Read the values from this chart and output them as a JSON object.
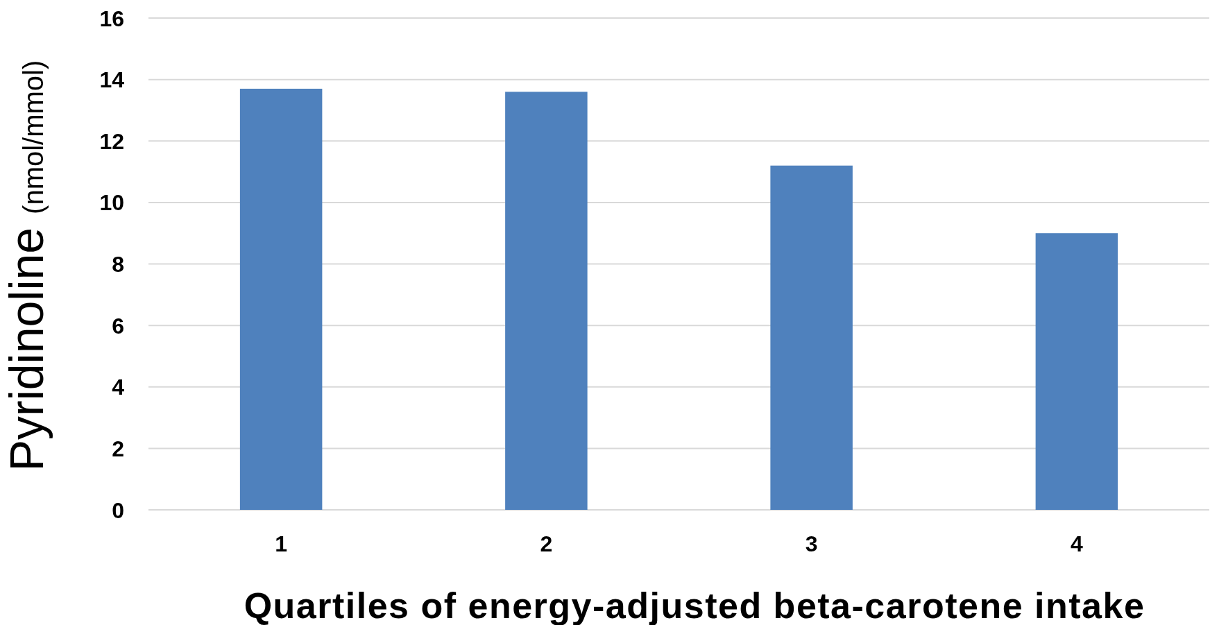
{
  "chart_data": {
    "type": "bar",
    "xlabel": "Quartiles of energy-adjusted beta-carotene intake",
    "ylabel": "Pyridinoline (nmol/mmol)",
    "categories": [
      "1",
      "2",
      "3",
      "4"
    ],
    "values": [
      13.7,
      13.6,
      11.2,
      9.0
    ],
    "color": "#4f81bd",
    "ylim": [
      0,
      16
    ],
    "yticks": [
      0,
      2,
      4,
      6,
      8,
      10,
      12,
      14,
      16
    ],
    "grid": "y"
  }
}
